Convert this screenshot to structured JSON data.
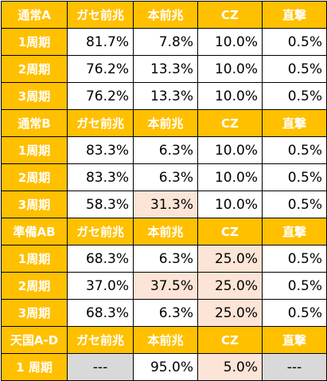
{
  "table": {
    "columns": [
      "ガセ前兆",
      "本前兆",
      "CZ",
      "直撃"
    ],
    "sections": [
      {
        "name": "通常A",
        "rows": [
          {
            "label": "1周期",
            "cells": [
              "81.7%",
              "7.8%",
              "10.0%",
              "0.5%"
            ],
            "hl": [
              false,
              false,
              false,
              false
            ],
            "gray": [
              false,
              false,
              false,
              false
            ]
          },
          {
            "label": "2周期",
            "cells": [
              "76.2%",
              "13.3%",
              "10.0%",
              "0.5%"
            ],
            "hl": [
              false,
              false,
              false,
              false
            ],
            "gray": [
              false,
              false,
              false,
              false
            ]
          },
          {
            "label": "3周期",
            "cells": [
              "76.2%",
              "13.3%",
              "10.0%",
              "0.5%"
            ],
            "hl": [
              false,
              false,
              false,
              false
            ],
            "gray": [
              false,
              false,
              false,
              false
            ]
          }
        ]
      },
      {
        "name": "通常B",
        "rows": [
          {
            "label": "1周期",
            "cells": [
              "83.3%",
              "6.3%",
              "10.0%",
              "0.5%"
            ],
            "hl": [
              false,
              false,
              false,
              false
            ],
            "gray": [
              false,
              false,
              false,
              false
            ]
          },
          {
            "label": "2周期",
            "cells": [
              "83.3%",
              "6.3%",
              "10.0%",
              "0.5%"
            ],
            "hl": [
              false,
              false,
              false,
              false
            ],
            "gray": [
              false,
              false,
              false,
              false
            ]
          },
          {
            "label": "3周期",
            "cells": [
              "58.3%",
              "31.3%",
              "10.0%",
              "0.5%"
            ],
            "hl": [
              false,
              true,
              false,
              false
            ],
            "gray": [
              false,
              false,
              false,
              false
            ]
          }
        ]
      },
      {
        "name": "準備AB",
        "rows": [
          {
            "label": "1周期",
            "cells": [
              "68.3%",
              "6.3%",
              "25.0%",
              "0.5%"
            ],
            "hl": [
              false,
              false,
              true,
              false
            ],
            "gray": [
              false,
              false,
              false,
              false
            ]
          },
          {
            "label": "2周期",
            "cells": [
              "37.0%",
              "37.5%",
              "25.0%",
              "0.5%"
            ],
            "hl": [
              false,
              true,
              true,
              false
            ],
            "gray": [
              false,
              false,
              false,
              false
            ]
          },
          {
            "label": "3周期",
            "cells": [
              "68.3%",
              "6.3%",
              "25.0%",
              "0.5%"
            ],
            "hl": [
              false,
              false,
              true,
              false
            ],
            "gray": [
              false,
              false,
              false,
              false
            ]
          }
        ]
      },
      {
        "name": "天国A-D",
        "rows": [
          {
            "label": "1 周期",
            "cells": [
              "---",
              "95.0%",
              "5.0%",
              "---"
            ],
            "hl": [
              false,
              false,
              true,
              false
            ],
            "gray": [
              true,
              false,
              false,
              true
            ]
          }
        ]
      }
    ]
  },
  "colors": {
    "header_bg": "#ffc000",
    "header_text": "#ffffff",
    "highlight_bg": "#fce4d6",
    "gray_bg": "#d9d9d9",
    "border": "#000000"
  }
}
